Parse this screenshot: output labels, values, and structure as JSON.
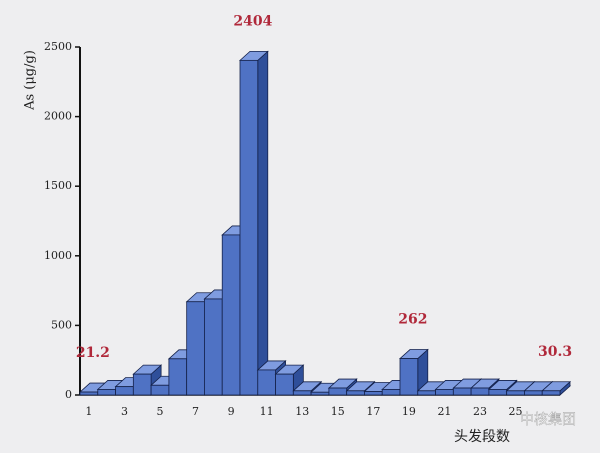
{
  "chart_data": {
    "type": "bar3d",
    "y_label": "As (μg/g)",
    "x_label": "头发段数",
    "categories": [
      "1",
      null,
      "3",
      null,
      "5",
      null,
      "7",
      null,
      "9",
      null,
      "11",
      null,
      "13",
      null,
      "15",
      null,
      "17",
      null,
      "19",
      null,
      "21",
      null,
      "23",
      null,
      "25",
      null,
      null
    ],
    "values": [
      21.2,
      40,
      60,
      150,
      70,
      260,
      670,
      690,
      1150,
      2404,
      180,
      150,
      30,
      20,
      50,
      30,
      25,
      40,
      262,
      30,
      40,
      50,
      50,
      40,
      30,
      30,
      30.3
    ],
    "value_labels": [
      "21.2",
      null,
      null,
      null,
      null,
      null,
      null,
      null,
      null,
      "2404",
      null,
      null,
      null,
      null,
      null,
      null,
      null,
      null,
      "262",
      null,
      null,
      null,
      null,
      null,
      null,
      null,
      "30.3"
    ],
    "color": "#4f72c4",
    "label_color": "#b0283a",
    "ylim": [
      0,
      2500
    ],
    "yticks": [
      0,
      500,
      1000,
      1500,
      2000,
      2500
    ],
    "watermark": "中核集团"
  }
}
